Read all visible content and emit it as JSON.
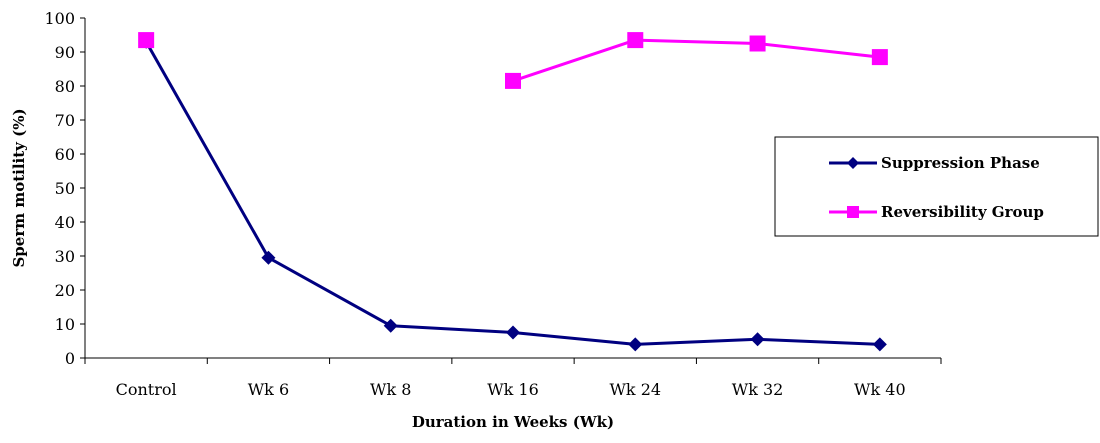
{
  "chart_data": {
    "type": "line",
    "categories": [
      "Control",
      "Wk 6",
      "Wk 8",
      "Wk 16",
      "Wk 24",
      "Wk 32",
      "Wk 40"
    ],
    "xlabel": "Duration in Weeks (Wk)",
    "ylabel": "Sperm motility (%)",
    "ylim": [
      0,
      100
    ],
    "yticks": [
      "0",
      "10",
      "20",
      "30",
      "40",
      "50",
      "60",
      "70",
      "80",
      "90",
      "100"
    ],
    "grid": false,
    "legend_position": "right",
    "series": [
      {
        "name": "Suppression Phase",
        "color": "#000080",
        "marker": "diamond",
        "values": [
          93,
          29.5,
          9.5,
          7.5,
          4,
          5.5,
          4
        ]
      },
      {
        "name": "Reversibility Group",
        "color": "#FF00FF",
        "marker": "square",
        "values": [
          93.5,
          null,
          null,
          81.5,
          93.5,
          92.5,
          88.5
        ]
      }
    ]
  }
}
